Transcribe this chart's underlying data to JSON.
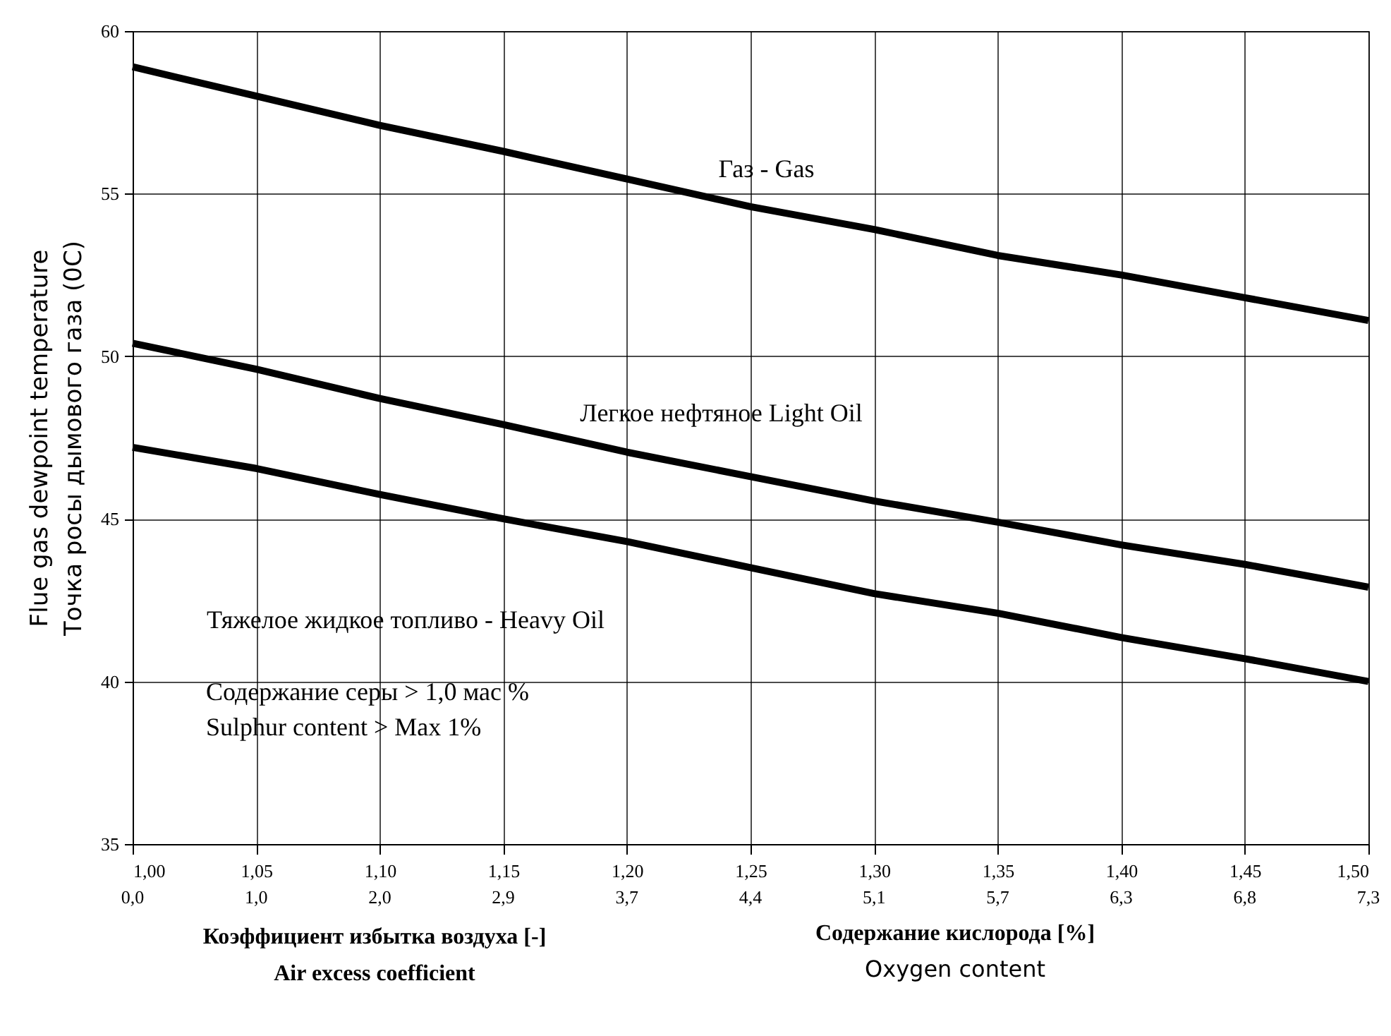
{
  "chart_data": {
    "type": "line",
    "xlabel": "Коэффициент избытка воздуха [-]\nAir excess coefficient",
    "ylabel": "Flue gas dewpoint temperature\nТочка росы дымового газа (0С)",
    "x": [
      1.0,
      1.05,
      1.1,
      1.15,
      1.2,
      1.25,
      1.3,
      1.35,
      1.4,
      1.45,
      1.5
    ],
    "series": [
      {
        "name": "Газ  -  Gas",
        "color": "#000000",
        "values": [
          58.9,
          58.0,
          57.1,
          56.3,
          55.45,
          54.6,
          53.9,
          53.1,
          52.5,
          51.8,
          51.1
        ]
      },
      {
        "name": "Легкое нефтяное    Light Oil",
        "color": "#000000",
        "values": [
          50.4,
          49.6,
          48.7,
          47.9,
          47.05,
          46.3,
          45.55,
          44.9,
          44.2,
          43.6,
          42.9
        ]
      },
      {
        "name": "Тяжелое жидкое топливо  -  Heavy Oil",
        "color": "#000000",
        "values": [
          47.2,
          46.55,
          45.75,
          45.0,
          44.3,
          43.5,
          42.7,
          42.1,
          41.35,
          40.7,
          40.0
        ]
      }
    ],
    "xlim": [
      1.0,
      1.5
    ],
    "xticks": [
      {
        "value": 1.0,
        "label": "1,00"
      },
      {
        "value": 1.05,
        "label": "1,05"
      },
      {
        "value": 1.1,
        "label": "1,10"
      },
      {
        "value": 1.15,
        "label": "1,15"
      },
      {
        "value": 1.2,
        "label": "1,20"
      },
      {
        "value": 1.25,
        "label": "1,25"
      },
      {
        "value": 1.3,
        "label": "1,30"
      },
      {
        "value": 1.35,
        "label": "1,35"
      },
      {
        "value": 1.4,
        "label": "1,40"
      },
      {
        "value": 1.45,
        "label": "1,45"
      },
      {
        "value": 1.5,
        "label": "1,50"
      }
    ],
    "ylim": [
      35,
      60
    ],
    "yticks": [
      35,
      40,
      45,
      50,
      55,
      60
    ],
    "annotations": [
      "Содержание серы > 1,0 мас %",
      "Sulphur content  > Max 1%",
      "Содержание кислорода [%]",
      "Oxygen content",
      "0,0",
      "1,0",
      "2,0",
      "2,9",
      "3,7",
      "4,4",
      "5,1",
      "5,7",
      "6,3",
      "6,8",
      "7,3"
    ],
    "grid": true,
    "line_style": "solid"
  }
}
